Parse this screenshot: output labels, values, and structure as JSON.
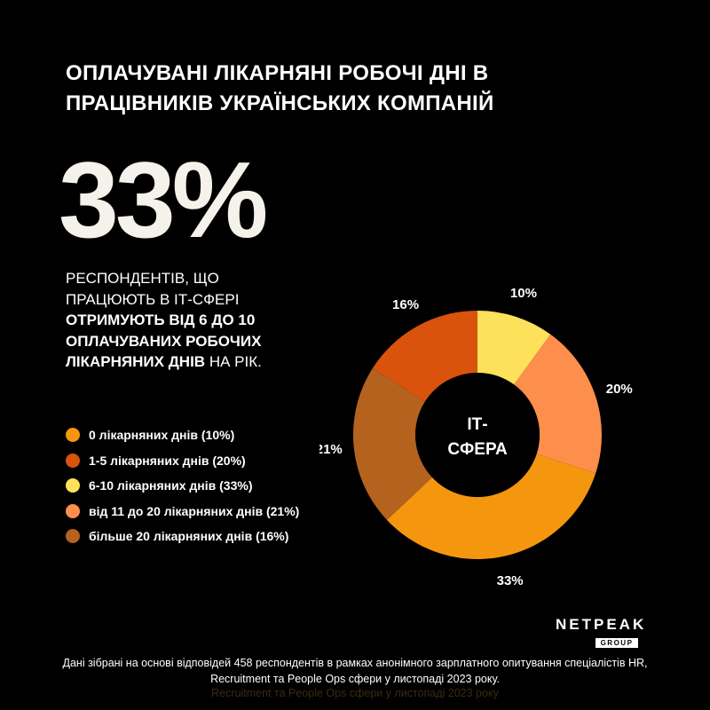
{
  "title": "ОПЛАЧУВАНІ ЛІКАРНЯНІ РОБОЧІ ДНІ В ПРАЦІВНИКІВ УКРАЇНСЬКИХ КОМПАНІЙ",
  "headline_value": "33%",
  "description": {
    "part1": "РЕСПОНДЕНТІВ, ЩО ПРАЦЮЮТЬ В ІТ-СФЕРІ ",
    "part2_bold": "ОТРИМУЮТЬ ВІД 6 ДО 10 ОПЛАЧУВАНИХ РОБОЧИХ ЛІКАРНЯНИХ ДНІВ",
    "part3": " НА РІК."
  },
  "legend": [
    {
      "label": "0 лікарняних днів (10%)",
      "color": "#f5960f"
    },
    {
      "label": "1-5 лікарняних днів (20%)",
      "color": "#d9530c"
    },
    {
      "label": "6-10 лікарняних днів (33%)",
      "color": "#fde15a"
    },
    {
      "label": "від 11 до 20 лікарняних днів (21%)",
      "color": "#fd8e4c"
    },
    {
      "label": "більше 20 лікарняних днів (16%)",
      "color": "#b5621f"
    }
  ],
  "chart_data": {
    "type": "pie",
    "center_label": [
      "ІТ-",
      "СФЕРА"
    ],
    "slices": [
      {
        "value": 10,
        "label": "10%",
        "color": "#fde15a"
      },
      {
        "value": 20,
        "label": "20%",
        "color": "#fd8e4c"
      },
      {
        "value": 33,
        "label": "33%",
        "color": "#f5960f"
      },
      {
        "value": 21,
        "label": "21%",
        "color": "#b5621f"
      },
      {
        "value": 16,
        "label": "16%",
        "color": "#d9530c"
      }
    ]
  },
  "brand": {
    "name": "NETPEAK",
    "sub": "GROUP"
  },
  "footnote": "Дані зібрані на основі відповідей 458 респондентів в рамках анонімного зарплатного опитування спеціалістів HR, Recruitment та People Ops сфери у листопаді 2023 року.",
  "footnote_ghost": "Recruitment та People Ops сфери у листопаді 2023 року"
}
